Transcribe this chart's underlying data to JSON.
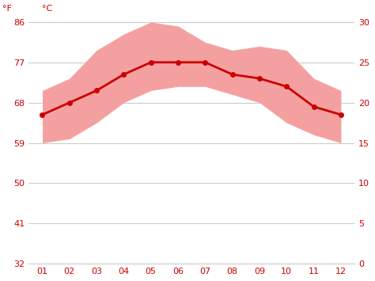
{
  "months": [
    1,
    2,
    3,
    4,
    5,
    6,
    7,
    8,
    9,
    10,
    11,
    12
  ],
  "month_labels": [
    "01",
    "02",
    "03",
    "04",
    "05",
    "06",
    "07",
    "08",
    "09",
    "10",
    "11",
    "12"
  ],
  "avg_temp_c": [
    18.5,
    20.0,
    21.5,
    23.5,
    25.0,
    25.0,
    25.0,
    23.5,
    23.0,
    22.0,
    19.5,
    18.5
  ],
  "max_temp_c": [
    21.5,
    23.0,
    26.5,
    28.5,
    30.0,
    29.5,
    27.5,
    26.5,
    27.0,
    26.5,
    23.0,
    21.5
  ],
  "min_temp_c": [
    15.0,
    15.5,
    17.5,
    20.0,
    21.5,
    22.0,
    22.0,
    21.0,
    20.0,
    17.5,
    16.0,
    15.0
  ],
  "line_color": "#cc0000",
  "band_color": "#f5a0a0",
  "background_color": "#ffffff",
  "grid_color": "#cccccc",
  "tick_color": "#cc0000",
  "yticks_c": [
    0,
    5,
    10,
    15,
    20,
    25,
    30
  ],
  "yticks_f": [
    32,
    41,
    50,
    59,
    68,
    77,
    86
  ],
  "ylim_c": [
    0,
    30
  ],
  "xlim": [
    0.5,
    12.5
  ],
  "xlabel_fontsize": 8,
  "ylabel_fontsize": 8,
  "tick_fontsize": 8,
  "line_width": 2.0,
  "marker_size": 4
}
